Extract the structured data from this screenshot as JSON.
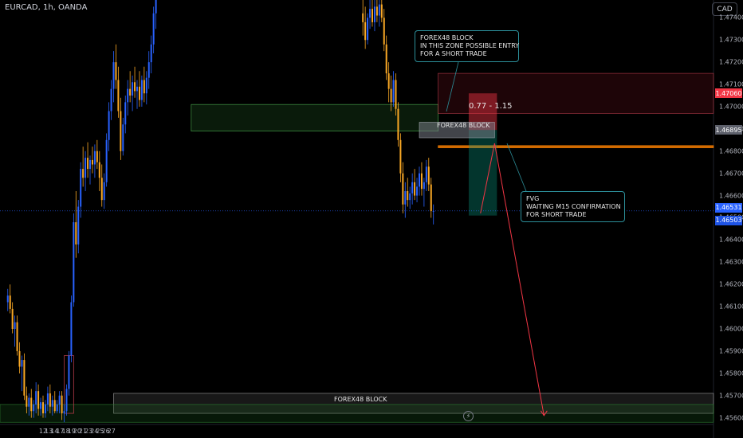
{
  "header": {
    "symbol": "EURCAD, 1h, OANDA",
    "currency_button": "CAD"
  },
  "price_tags": [
    {
      "label": "1.47060",
      "value": 1.4706,
      "color": "#f23645"
    },
    {
      "label": "1.46895",
      "value": 1.46895,
      "color": "#5d606b"
    },
    {
      "label": "1.46531",
      "value": 1.46531,
      "color": "#2962ff"
    },
    {
      "label": "1.46503",
      "value": 1.46503,
      "color": "#1e53e5"
    }
  ],
  "annotations": {
    "upper_note": [
      "FOREX48 BLOCK",
      "IN THIS ZONE POSSIBLE ENTRY",
      "FOR A SHORT TRADE"
    ],
    "fvg_note": [
      "FVG",
      "WAITING M15 CONFIRMATION",
      "FOR SHORT TRADE"
    ],
    "upper_block_label": "FOREX48 BLOCK",
    "lower_block_label": "FOREX48 BLOCK",
    "risk_reward": "0.77 - 1.15",
    "bolt_icon": "⚡"
  },
  "chart_data": {
    "type": "candlestick",
    "symbol": "EURCAD",
    "timeframe": "1h",
    "y_ticks": [
      1.474,
      1.473,
      1.472,
      1.471,
      1.47,
      1.469,
      1.468,
      1.467,
      1.466,
      1.465,
      1.464,
      1.463,
      1.462,
      1.461,
      1.46,
      1.459,
      1.458,
      1.457,
      1.456
    ],
    "y_tick_labels": [
      "1.47400",
      "1.47300",
      "1.47200",
      "1.47100",
      "1.47000",
      "1.46900",
      "1.46800",
      "1.46700",
      "1.46600",
      "1.46500",
      "1.46400",
      "1.46300",
      "1.46200",
      "1.46100",
      "1.46000",
      "1.45900",
      "1.45800",
      "1.45700",
      "1.45600"
    ],
    "ylim": [
      1.4557,
      1.4748
    ],
    "x_tick_labels": [
      "12",
      "13",
      "14",
      "17",
      "18",
      "19",
      "20",
      "21",
      "23",
      "24",
      "25",
      "26",
      "27"
    ],
    "x_tick_index": [
      0,
      24,
      48,
      72,
      96,
      120,
      144,
      168,
      192,
      216,
      240,
      264,
      288
    ],
    "candles": [
      {
        "o": 1.4612,
        "h": 1.4618,
        "l": 1.4608,
        "c": 1.4615
      },
      {
        "o": 1.4615,
        "h": 1.462,
        "l": 1.4607,
        "c": 1.4609
      },
      {
        "o": 1.4609,
        "h": 1.4612,
        "l": 1.4598,
        "c": 1.46
      },
      {
        "o": 1.46,
        "h": 1.4606,
        "l": 1.4592,
        "c": 1.4603
      },
      {
        "o": 1.4603,
        "h": 1.4606,
        "l": 1.4588,
        "c": 1.459
      },
      {
        "o": 1.459,
        "h": 1.4594,
        "l": 1.458,
        "c": 1.4583
      },
      {
        "o": 1.4583,
        "h": 1.4588,
        "l": 1.4572,
        "c": 1.4586
      },
      {
        "o": 1.4586,
        "h": 1.4589,
        "l": 1.4568,
        "c": 1.457
      },
      {
        "o": 1.457,
        "h": 1.4574,
        "l": 1.4562,
        "c": 1.4565
      },
      {
        "o": 1.4565,
        "h": 1.4571,
        "l": 1.4561,
        "c": 1.4569
      },
      {
        "o": 1.4569,
        "h": 1.4573,
        "l": 1.456,
        "c": 1.4563
      },
      {
        "o": 1.4563,
        "h": 1.4568,
        "l": 1.456,
        "c": 1.4566
      },
      {
        "o": 1.4566,
        "h": 1.4576,
        "l": 1.4562,
        "c": 1.4572
      },
      {
        "o": 1.4572,
        "h": 1.4575,
        "l": 1.4561,
        "c": 1.4564
      },
      {
        "o": 1.4564,
        "h": 1.4569,
        "l": 1.4561,
        "c": 1.4567
      },
      {
        "o": 1.4567,
        "h": 1.457,
        "l": 1.456,
        "c": 1.4562
      },
      {
        "o": 1.4562,
        "h": 1.4568,
        "l": 1.456,
        "c": 1.4566
      },
      {
        "o": 1.4566,
        "h": 1.4574,
        "l": 1.4563,
        "c": 1.4571
      },
      {
        "o": 1.4571,
        "h": 1.4575,
        "l": 1.4562,
        "c": 1.4565
      },
      {
        "o": 1.4565,
        "h": 1.457,
        "l": 1.4561,
        "c": 1.4568
      },
      {
        "o": 1.4568,
        "h": 1.4572,
        "l": 1.4562,
        "c": 1.4563
      },
      {
        "o": 1.4563,
        "h": 1.4568,
        "l": 1.4562,
        "c": 1.4566
      },
      {
        "o": 1.4566,
        "h": 1.4572,
        "l": 1.4562,
        "c": 1.457
      },
      {
        "o": 1.457,
        "h": 1.4572,
        "l": 1.4559,
        "c": 1.4562
      },
      {
        "o": 1.4562,
        "h": 1.4566,
        "l": 1.4558,
        "c": 1.4563
      },
      {
        "o": 1.4563,
        "h": 1.4575,
        "l": 1.4561,
        "c": 1.4573
      },
      {
        "o": 1.4573,
        "h": 1.459,
        "l": 1.457,
        "c": 1.4588
      },
      {
        "o": 1.4588,
        "h": 1.4615,
        "l": 1.4585,
        "c": 1.4612
      },
      {
        "o": 1.4612,
        "h": 1.4652,
        "l": 1.461,
        "c": 1.4648
      },
      {
        "o": 1.4648,
        "h": 1.4662,
        "l": 1.4632,
        "c": 1.4638
      },
      {
        "o": 1.4638,
        "h": 1.4658,
        "l": 1.4634,
        "c": 1.4655
      },
      {
        "o": 1.4655,
        "h": 1.4675,
        "l": 1.465,
        "c": 1.4672
      },
      {
        "o": 1.4672,
        "h": 1.4682,
        "l": 1.4664,
        "c": 1.4668
      },
      {
        "o": 1.4668,
        "h": 1.468,
        "l": 1.4662,
        "c": 1.4677
      },
      {
        "o": 1.4677,
        "h": 1.4684,
        "l": 1.4668,
        "c": 1.4672
      },
      {
        "o": 1.4672,
        "h": 1.4678,
        "l": 1.4665,
        "c": 1.4676
      },
      {
        "o": 1.4676,
        "h": 1.4682,
        "l": 1.467,
        "c": 1.4674
      },
      {
        "o": 1.4674,
        "h": 1.4683,
        "l": 1.4668,
        "c": 1.468
      },
      {
        "o": 1.468,
        "h": 1.4685,
        "l": 1.4672,
        "c": 1.4675
      },
      {
        "o": 1.4675,
        "h": 1.468,
        "l": 1.4662,
        "c": 1.4668
      },
      {
        "o": 1.4668,
        "h": 1.4674,
        "l": 1.4655,
        "c": 1.4658
      },
      {
        "o": 1.4658,
        "h": 1.467,
        "l": 1.4654,
        "c": 1.4666
      },
      {
        "o": 1.4666,
        "h": 1.4688,
        "l": 1.4664,
        "c": 1.4685
      },
      {
        "o": 1.4685,
        "h": 1.4702,
        "l": 1.468,
        "c": 1.4698
      },
      {
        "o": 1.4698,
        "h": 1.4712,
        "l": 1.4694,
        "c": 1.4708
      },
      {
        "o": 1.4708,
        "h": 1.4725,
        "l": 1.4702,
        "c": 1.472
      },
      {
        "o": 1.472,
        "h": 1.4728,
        "l": 1.4708,
        "c": 1.4712
      },
      {
        "o": 1.4712,
        "h": 1.4718,
        "l": 1.4695,
        "c": 1.4698
      },
      {
        "o": 1.4698,
        "h": 1.4704,
        "l": 1.4676,
        "c": 1.468
      },
      {
        "o": 1.468,
        "h": 1.4695,
        "l": 1.4678,
        "c": 1.4692
      },
      {
        "o": 1.4692,
        "h": 1.4705,
        "l": 1.4688,
        "c": 1.4702
      },
      {
        "o": 1.4702,
        "h": 1.4712,
        "l": 1.4696,
        "c": 1.4708
      },
      {
        "o": 1.4708,
        "h": 1.4716,
        "l": 1.4702,
        "c": 1.4705
      },
      {
        "o": 1.4705,
        "h": 1.4714,
        "l": 1.4698,
        "c": 1.4711
      },
      {
        "o": 1.4711,
        "h": 1.4718,
        "l": 1.4704,
        "c": 1.4707
      },
      {
        "o": 1.4707,
        "h": 1.4712,
        "l": 1.4699,
        "c": 1.4709
      },
      {
        "o": 1.4709,
        "h": 1.4716,
        "l": 1.47,
        "c": 1.4703
      },
      {
        "o": 1.4703,
        "h": 1.4714,
        "l": 1.47,
        "c": 1.4712
      },
      {
        "o": 1.4712,
        "h": 1.4718,
        "l": 1.4702,
        "c": 1.4706
      },
      {
        "o": 1.4706,
        "h": 1.4716,
        "l": 1.4701,
        "c": 1.4713
      },
      {
        "o": 1.4713,
        "h": 1.4725,
        "l": 1.4708,
        "c": 1.472
      },
      {
        "o": 1.472,
        "h": 1.4732,
        "l": 1.4715,
        "c": 1.4728
      },
      {
        "o": 1.4728,
        "h": 1.4745,
        "l": 1.4724,
        "c": 1.4742
      },
      {
        "o": 1.4742,
        "h": 1.475,
        "l": 1.4735,
        "c": 1.4748
      }
    ],
    "candles_after_gap": [
      {
        "i": 136,
        "o": 1.4742,
        "h": 1.475,
        "l": 1.4732,
        "c": 1.4738
      },
      {
        "i": 137,
        "o": 1.4738,
        "h": 1.4745,
        "l": 1.4726,
        "c": 1.473
      },
      {
        "i": 138,
        "o": 1.473,
        "h": 1.4742,
        "l": 1.4728,
        "c": 1.474
      },
      {
        "i": 139,
        "o": 1.474,
        "h": 1.475,
        "l": 1.4735,
        "c": 1.4744
      },
      {
        "i": 140,
        "o": 1.4744,
        "h": 1.475,
        "l": 1.4736,
        "c": 1.4738
      },
      {
        "i": 141,
        "o": 1.4738,
        "h": 1.4748,
        "l": 1.4734,
        "c": 1.4745
      },
      {
        "i": 142,
        "o": 1.4745,
        "h": 1.475,
        "l": 1.4738,
        "c": 1.4741
      },
      {
        "i": 143,
        "o": 1.4741,
        "h": 1.4749,
        "l": 1.4736,
        "c": 1.4746
      },
      {
        "i": 144,
        "o": 1.4746,
        "h": 1.475,
        "l": 1.4738,
        "c": 1.474
      },
      {
        "i": 145,
        "o": 1.474,
        "h": 1.4744,
        "l": 1.4725,
        "c": 1.4728
      },
      {
        "i": 146,
        "o": 1.4728,
        "h": 1.4732,
        "l": 1.4712,
        "c": 1.4715
      },
      {
        "i": 147,
        "o": 1.4715,
        "h": 1.472,
        "l": 1.4702,
        "c": 1.4708
      },
      {
        "i": 148,
        "o": 1.4708,
        "h": 1.4714,
        "l": 1.4698,
        "c": 1.4702
      },
      {
        "i": 149,
        "o": 1.4702,
        "h": 1.4716,
        "l": 1.47,
        "c": 1.4712
      },
      {
        "i": 150,
        "o": 1.4712,
        "h": 1.4715,
        "l": 1.4696,
        "c": 1.4699
      },
      {
        "i": 151,
        "o": 1.4699,
        "h": 1.4702,
        "l": 1.4682,
        "c": 1.4685
      },
      {
        "i": 152,
        "o": 1.4685,
        "h": 1.4688,
        "l": 1.4666,
        "c": 1.467
      },
      {
        "i": 153,
        "o": 1.467,
        "h": 1.4675,
        "l": 1.4652,
        "c": 1.4656
      },
      {
        "i": 154,
        "o": 1.4656,
        "h": 1.4666,
        "l": 1.465,
        "c": 1.4662
      },
      {
        "i": 155,
        "o": 1.4662,
        "h": 1.4668,
        "l": 1.4655,
        "c": 1.4658
      },
      {
        "i": 156,
        "o": 1.4658,
        "h": 1.4664,
        "l": 1.4654,
        "c": 1.4661
      },
      {
        "i": 157,
        "o": 1.4661,
        "h": 1.467,
        "l": 1.4656,
        "c": 1.4666
      },
      {
        "i": 158,
        "o": 1.4666,
        "h": 1.4672,
        "l": 1.4658,
        "c": 1.466
      },
      {
        "i": 159,
        "o": 1.466,
        "h": 1.4668,
        "l": 1.4657,
        "c": 1.4664
      },
      {
        "i": 160,
        "o": 1.4664,
        "h": 1.4673,
        "l": 1.466,
        "c": 1.467
      },
      {
        "i": 161,
        "o": 1.467,
        "h": 1.4675,
        "l": 1.466,
        "c": 1.4663
      },
      {
        "i": 162,
        "o": 1.4663,
        "h": 1.4668,
        "l": 1.4655,
        "c": 1.4666
      },
      {
        "i": 163,
        "o": 1.4666,
        "h": 1.4676,
        "l": 1.4662,
        "c": 1.4673
      },
      {
        "i": 164,
        "o": 1.4673,
        "h": 1.4677,
        "l": 1.4662,
        "c": 1.4665
      },
      {
        "i": 165,
        "o": 1.4665,
        "h": 1.4668,
        "l": 1.465,
        "c": 1.4653
      },
      {
        "i": 166,
        "o": 1.4653,
        "h": 1.4656,
        "l": 1.4647,
        "c": 1.4653
      }
    ],
    "zones": [
      {
        "name": "upper demand block",
        "y1": 1.4689,
        "y2": 1.4701,
        "i1": 63,
        "i2": 168,
        "color": "#1b5e20"
      },
      {
        "name": "supply zone",
        "y1": 1.4697,
        "y2": 1.4715,
        "i1": 168,
        "i2": 330,
        "color": "#4a1018"
      },
      {
        "name": "fvg line",
        "y1": 1.46815,
        "y2": 1.46825,
        "i1": 168,
        "i2": 330,
        "color": "#f57c00"
      },
      {
        "name": "lower block",
        "y1": 1.4562,
        "y2": 1.4571,
        "i1": 30,
        "i2": 300,
        "color": "#5d606b"
      }
    ],
    "last_price": 1.46531
  }
}
